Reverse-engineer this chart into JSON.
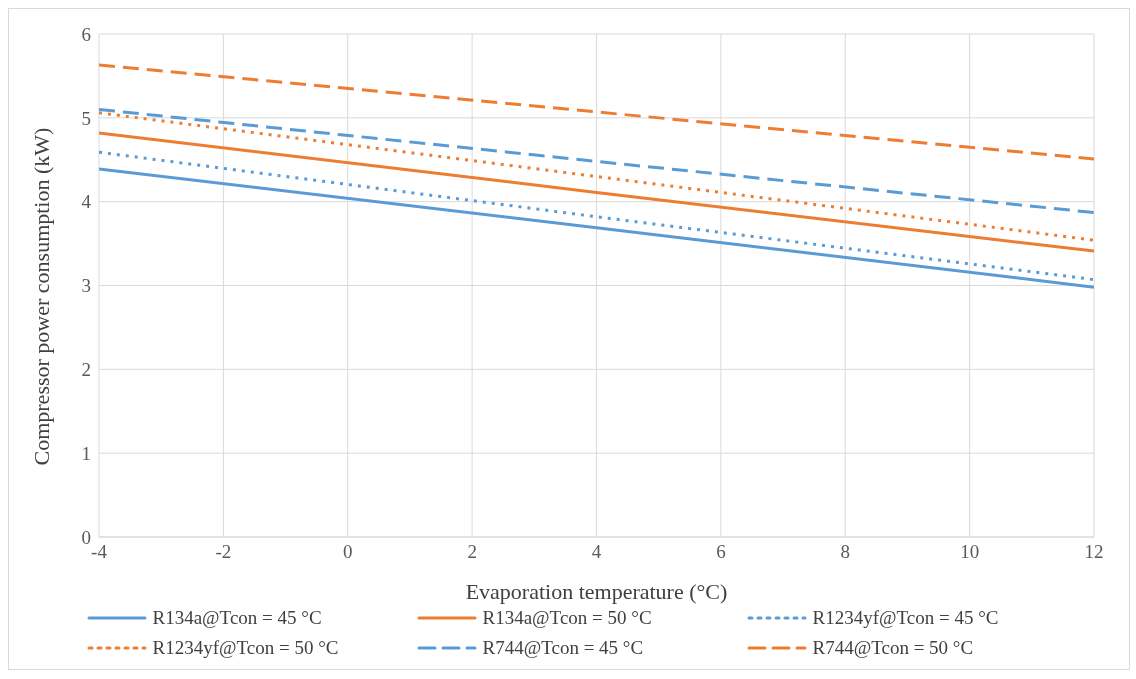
{
  "chart_data": {
    "type": "line",
    "xlabel": "Evaporation temperature (°C)",
    "ylabel": "Compressor power consumption (kW)",
    "xlim": [
      -4,
      12
    ],
    "xticks": [
      -4,
      -2,
      0,
      2,
      4,
      6,
      8,
      10,
      12
    ],
    "ylim": [
      0,
      6
    ],
    "yticks": [
      0,
      1,
      2,
      3,
      4,
      5,
      6
    ],
    "grid": true,
    "legend": "bottom",
    "marker": "none",
    "series": [
      {
        "name": "R134a@Tcon = 45 °C",
        "color": "#5b9bd5",
        "line_style": "solid",
        "x": [
          -4,
          4,
          12
        ],
        "values": [
          4.39,
          3.69,
          2.98
        ]
      },
      {
        "name": "R134a@Tcon = 50 °C",
        "color": "#ed7d31",
        "line_style": "solid",
        "x": [
          -4,
          4,
          12
        ],
        "values": [
          4.82,
          4.11,
          3.41
        ]
      },
      {
        "name": "R1234yf@Tcon = 45 °C",
        "color": "#5b9bd5",
        "line_style": "dotted",
        "x": [
          -4,
          4,
          12
        ],
        "values": [
          4.59,
          3.82,
          3.07
        ]
      },
      {
        "name": "R1234yf@Tcon = 50 °C",
        "color": "#ed7d31",
        "line_style": "dotted",
        "x": [
          -4,
          4,
          12
        ],
        "values": [
          5.06,
          4.3,
          3.54
        ]
      },
      {
        "name": "R744@Tcon = 45 °C",
        "color": "#5b9bd5",
        "line_style": "dashed",
        "x": [
          -4,
          4,
          12
        ],
        "values": [
          5.1,
          4.48,
          3.87
        ]
      },
      {
        "name": "R744@Tcon = 50 °C",
        "color": "#ed7d31",
        "line_style": "dashed",
        "x": [
          -4,
          4,
          12
        ],
        "values": [
          5.63,
          5.07,
          4.51
        ]
      }
    ]
  }
}
